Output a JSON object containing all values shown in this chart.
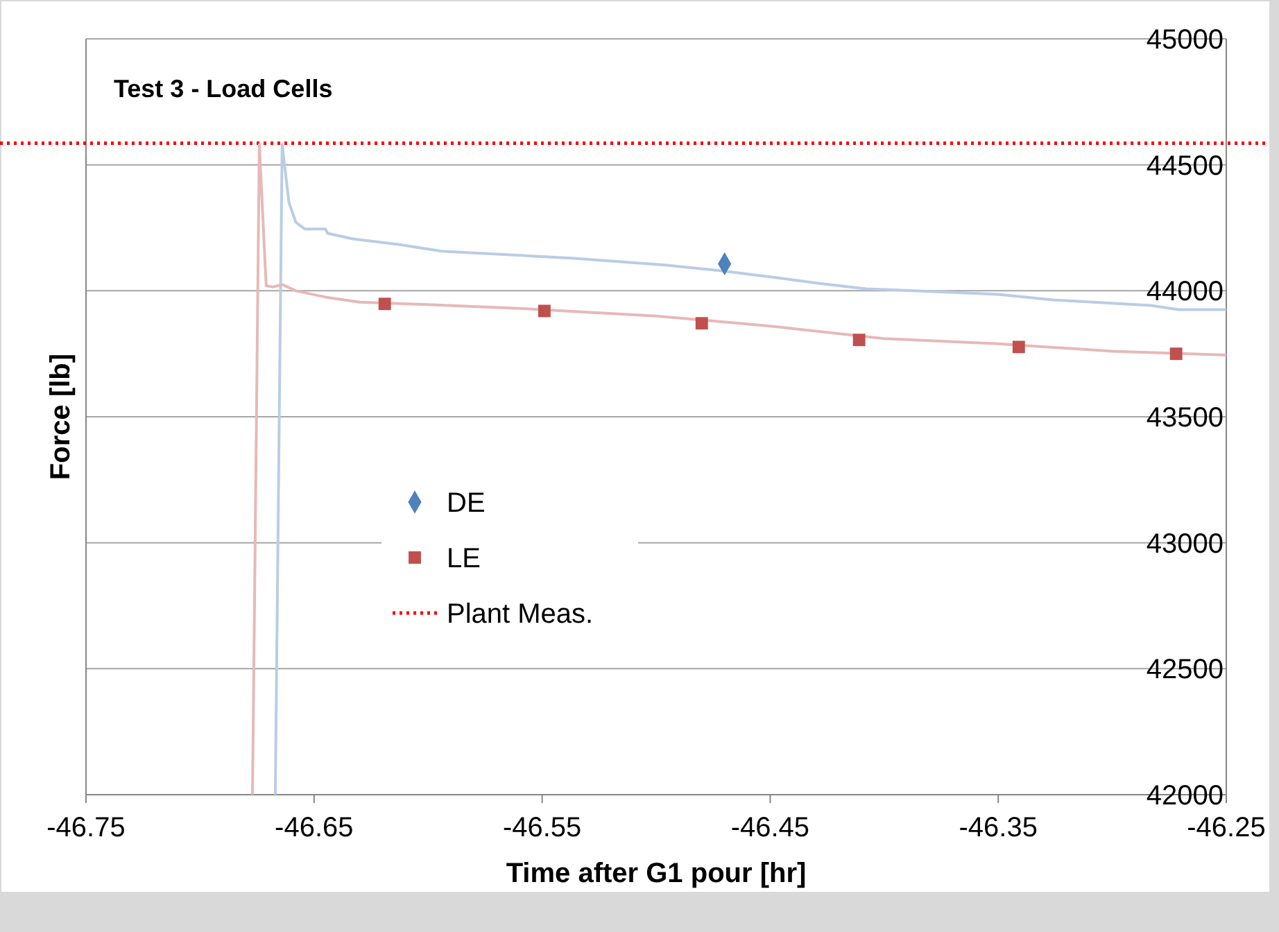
{
  "chart_data": {
    "type": "line",
    "title": "Test 3 - Load Cells",
    "xlabel": "Time after G1 pour [hr]",
    "ylabel": "Force [lb]",
    "xlim": [
      -46.75,
      -46.25
    ],
    "xticks": [
      -46.75,
      -46.65,
      -46.55,
      -46.45,
      -46.35,
      -46.25
    ],
    "ylim": [
      42000,
      45000
    ],
    "yticks": [
      42000,
      42500,
      43000,
      43500,
      44000,
      44500,
      45000
    ],
    "grid": "y",
    "legend": "left",
    "series": [
      {
        "color": "#b9cde5",
        "x": [
          -46.667,
          -46.664,
          -46.661,
          -46.658,
          -46.654,
          -46.645,
          -46.644,
          -46.633,
          -46.613,
          -46.594,
          -46.536,
          -46.496,
          -46.472,
          -46.447,
          -46.429,
          -46.408,
          -46.35,
          -46.326,
          -46.283,
          -46.271,
          -46.25
        ],
        "values": [
          42000,
          44580,
          44350,
          44272,
          44245,
          44245,
          44228,
          44206,
          44184,
          44157,
          44129,
          44102,
          44080,
          44052,
          44030,
          44008,
          43986,
          43964,
          43942,
          43925,
          43925
        ]
      },
      {
        "color": "#e6b9b8",
        "x": [
          -46.677,
          -46.674,
          -46.671,
          -46.668,
          -46.664,
          -46.658,
          -46.645,
          -46.63,
          -46.6,
          -46.56,
          -46.5,
          -46.45,
          -46.4,
          -46.35,
          -46.3,
          -46.25
        ],
        "values": [
          42000,
          44580,
          44020,
          44015,
          44025,
          44000,
          43975,
          43955,
          43945,
          43930,
          43900,
          43860,
          43810,
          43790,
          43760,
          43745
        ]
      },
      {
        "type": "scatter",
        "name": "DE",
        "color": "#4f81bd",
        "marker": "diamond",
        "x": [
          -46.47
        ],
        "values": [
          44107
        ]
      },
      {
        "type": "scatter",
        "name": "LE",
        "color": "#c0504d",
        "marker": "square",
        "x": [
          -46.619,
          -46.549,
          -46.48,
          -46.411,
          -46.341,
          -46.272
        ],
        "values": [
          43948,
          43920,
          43871,
          43805,
          43777,
          43750
        ]
      }
    ],
    "ref_lines": [
      {
        "axis": "y",
        "value": 44586,
        "label": "Plant Meas.",
        "color": "#ff0000",
        "line_style": "dotted"
      }
    ]
  }
}
